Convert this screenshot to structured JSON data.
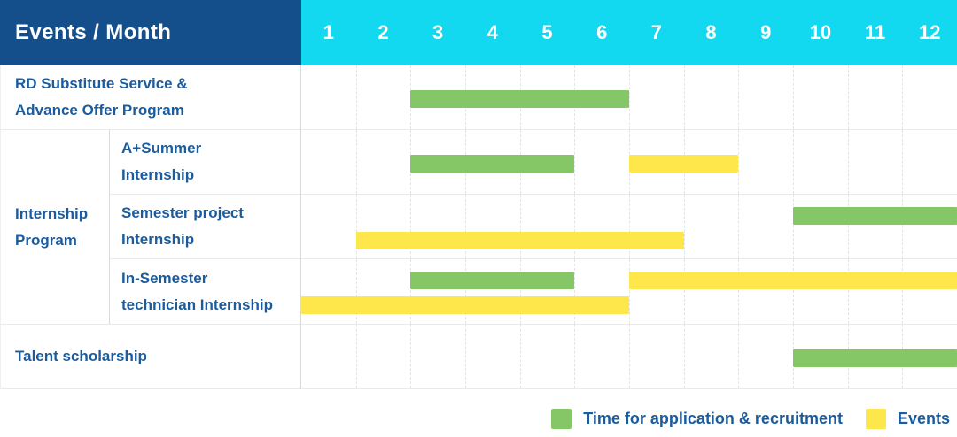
{
  "header": {
    "title": "Events / Month",
    "months": [
      "1",
      "2",
      "3",
      "4",
      "5",
      "6",
      "7",
      "8",
      "9",
      "10",
      "11",
      "12"
    ]
  },
  "colors": {
    "header_bg": "#154f8b",
    "month_header_bg": "#12d8f0",
    "label_text": "#1b5c9e",
    "application": "#85c667",
    "events": "#fde74a"
  },
  "chart_data": {
    "type": "bar",
    "variant": "gantt-timeline",
    "title": "Events / Month",
    "x_axis": {
      "label": "Month",
      "ticks": [
        1,
        2,
        3,
        4,
        5,
        6,
        7,
        8,
        9,
        10,
        11,
        12
      ],
      "range": [
        1,
        12
      ]
    },
    "grid": "vertical-dashed",
    "legend_position": "bottom-right",
    "group_label_lines": {
      "Internship Program": [
        "Internship",
        "Program"
      ]
    },
    "rows": [
      {
        "event": "RD Substitute Service & Advance Offer Program",
        "group": null,
        "label_lines": [
          "RD Substitute Service &",
          "Advance Offer Program"
        ],
        "lanes": [
          [
            {
              "series": "application",
              "start_month": 3,
              "end_month": 6
            }
          ]
        ]
      },
      {
        "event": "A+Summer Internship",
        "group": "Internship Program",
        "label_lines": [
          "A+Summer",
          "Internship"
        ],
        "lanes": [
          [
            {
              "series": "application",
              "start_month": 3,
              "end_month": 5
            },
            {
              "series": "events",
              "start_month": 7,
              "end_month": 8
            }
          ]
        ]
      },
      {
        "event": "Semester project Internship",
        "group": "Internship Program",
        "label_lines": [
          "Semester project",
          "Internship"
        ],
        "lanes": [
          [
            {
              "series": "application",
              "start_month": 10,
              "end_month": 12
            }
          ],
          [
            {
              "series": "events",
              "start_month": 2,
              "end_month": 7
            }
          ]
        ]
      },
      {
        "event": "In-Semester technician Internship",
        "group": "Internship Program",
        "label_lines": [
          "In-Semester",
          "technician Internship"
        ],
        "lanes": [
          [
            {
              "series": "application",
              "start_month": 3,
              "end_month": 5
            },
            {
              "series": "events",
              "start_month": 7,
              "end_month": 12
            }
          ],
          [
            {
              "series": "events",
              "start_month": 1,
              "end_month": 6
            }
          ]
        ]
      },
      {
        "event": "Talent scholarship",
        "group": null,
        "label_lines": [
          "Talent scholarship"
        ],
        "lanes": [
          [
            {
              "series": "application",
              "start_month": 10,
              "end_month": 12
            }
          ]
        ]
      }
    ]
  },
  "legend": {
    "items": [
      {
        "series": "application",
        "label": "Time for application & recruitment"
      },
      {
        "series": "events",
        "label": "Events"
      }
    ]
  }
}
